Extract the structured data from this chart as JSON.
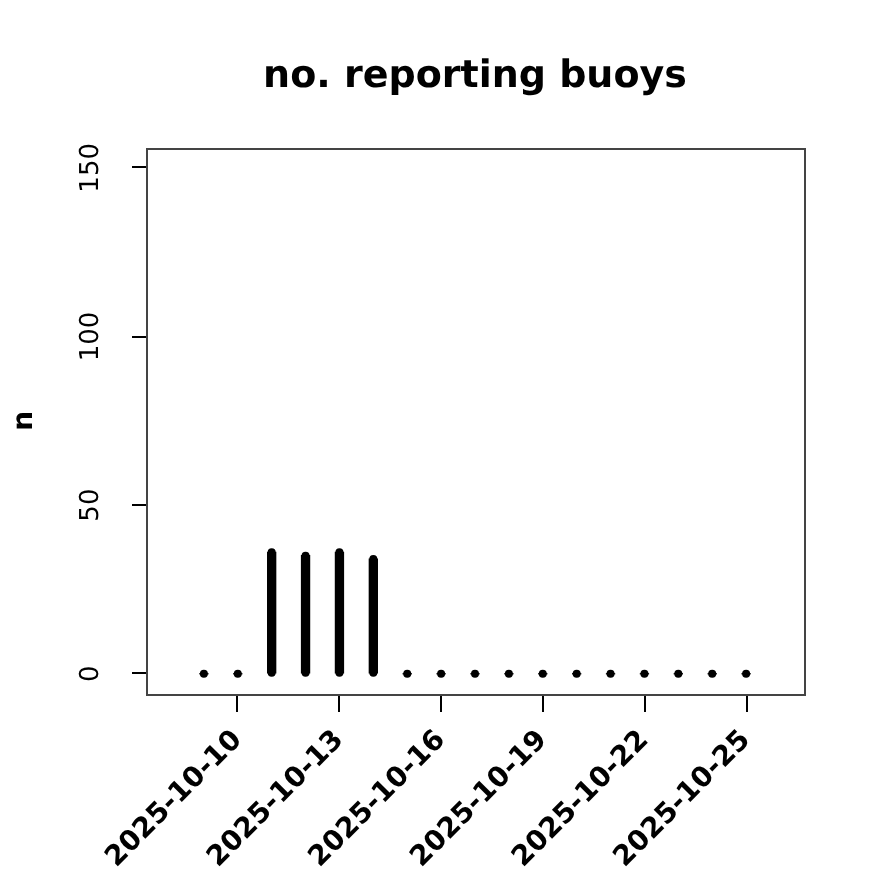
{
  "chart_data": {
    "type": "bar",
    "title": "no. reporting buoys",
    "ylabel": "n",
    "x": [
      "2025-10-09",
      "2025-10-10",
      "2025-10-11",
      "2025-10-12",
      "2025-10-13",
      "2025-10-14",
      "2025-10-15",
      "2025-10-16",
      "2025-10-17",
      "2025-10-18",
      "2025-10-19",
      "2025-10-20",
      "2025-10-21",
      "2025-10-22",
      "2025-10-23",
      "2025-10-24",
      "2025-10-25"
    ],
    "values": [
      0,
      0,
      36,
      35,
      36,
      34,
      0,
      0,
      0,
      0,
      0,
      0,
      0,
      0,
      0,
      0,
      0
    ],
    "color": "#000000",
    "xlim": [
      "2025-10-07T07:00",
      "2025-10-26T17:00"
    ],
    "xticks": [
      "2025-10-10",
      "2025-10-13",
      "2025-10-16",
      "2025-10-19",
      "2025-10-22",
      "2025-10-25"
    ],
    "ylim": [
      -6,
      156
    ],
    "yticks": [
      0,
      50,
      100,
      150
    ],
    "grid": false,
    "legend": false
  }
}
